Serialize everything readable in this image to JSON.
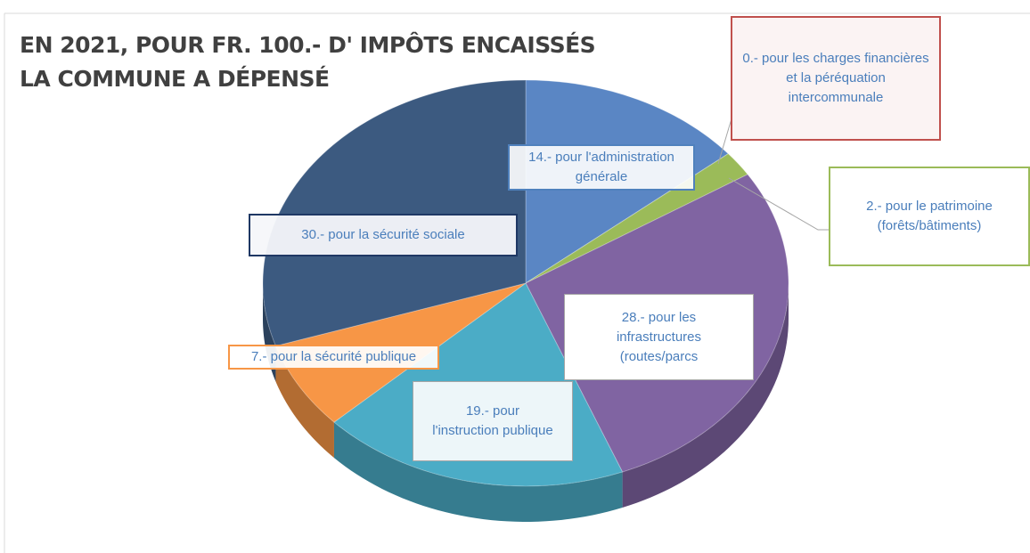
{
  "chart_data": {
    "type": "pie",
    "title": [
      "EN 2021, POUR FR. 100.- D' IMPÔTS ENCAISSÉS",
      "LA COMMUNE A DÉPENSÉ"
    ],
    "values": [
      14,
      0,
      2,
      28,
      19,
      7,
      30
    ],
    "value_labels": [
      "14.- pour l'administration générale",
      "0.- pour les charges financières et la péréquation intercommunale",
      "2.- pour le patrimoine (forêts/bâtiments)",
      "28.- pour les infrastructures (routes/parcs",
      "19.- pour l'instruction publique",
      "7.- pour la sécurité publique",
      "30.- pour la sécurité sociale"
    ],
    "colors": [
      "#5a86c4",
      "#c0504d",
      "#9bbb59",
      "#8064a2",
      "#4bacc6",
      "#f79646",
      "#3c5a80"
    ]
  }
}
